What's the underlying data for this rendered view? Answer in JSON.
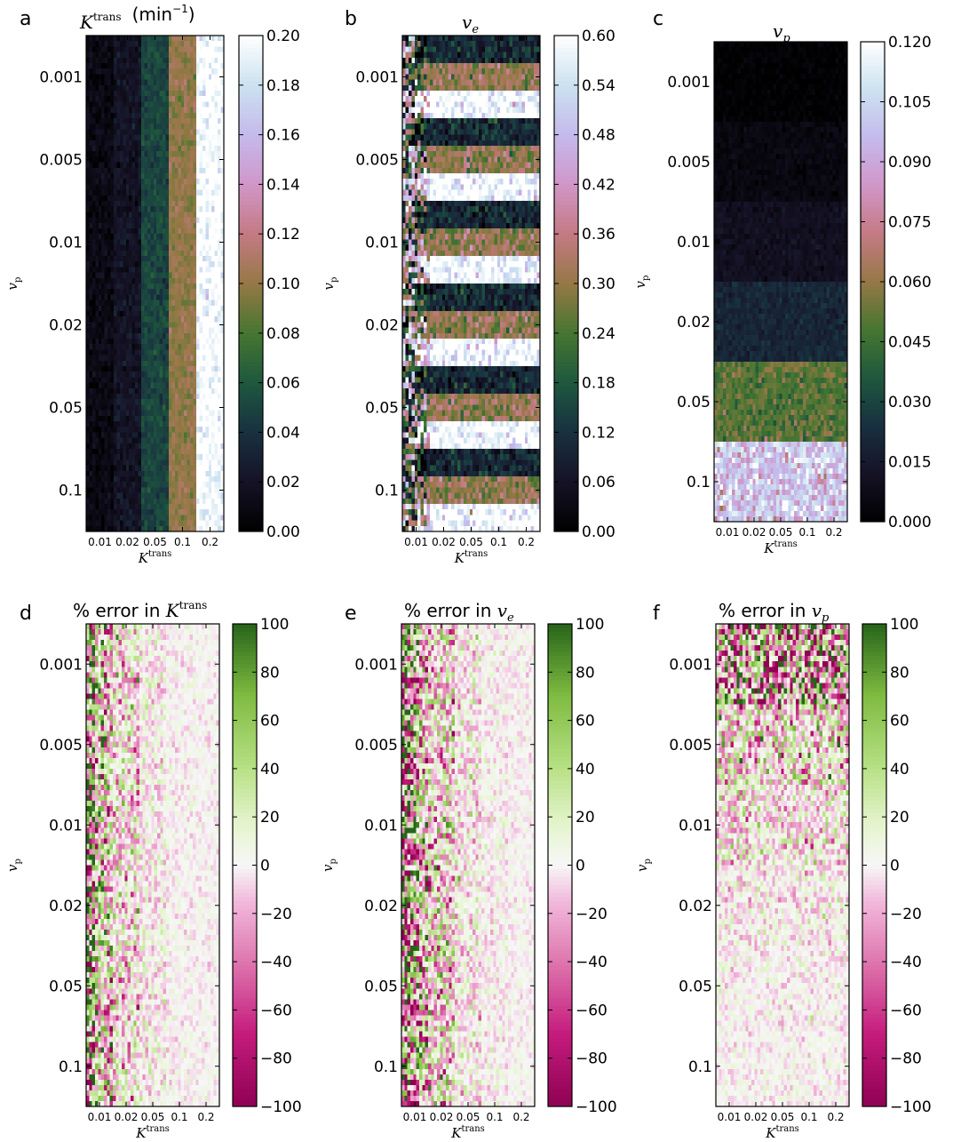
{
  "x_axis": {
    "label_main": "K",
    "label_sup": "trans",
    "tick_labels": [
      "0.01",
      "0.02",
      "0.05",
      "0.1",
      "0.2"
    ]
  },
  "y_axis": {
    "label_main": "v",
    "label_sub": "p",
    "tick_labels": [
      "0.001",
      "0.005",
      "0.01",
      "0.02",
      "0.05",
      "0.1"
    ]
  },
  "panels": [
    {
      "letter": "a",
      "title_math": "K",
      "title_sup": "trans",
      "title_sub": "",
      "title_suffix": "(min",
      "title_suffix_sup": "−1",
      "title_suffix_end": ")",
      "title_prefix": "",
      "colorbar_ticks": [
        "0.20",
        "0.18",
        "0.16",
        "0.14",
        "0.12",
        "0.10",
        "0.08",
        "0.06",
        "0.04",
        "0.02",
        "0.00"
      ],
      "colormap": "cubehelix"
    },
    {
      "letter": "b",
      "title_prefix": "",
      "title_math": "v",
      "title_sup": "",
      "title_sub": "e",
      "title_suffix": "",
      "title_suffix_sup": "",
      "title_suffix_end": "",
      "colorbar_ticks": [
        "0.60",
        "0.54",
        "0.48",
        "0.42",
        "0.36",
        "0.30",
        "0.24",
        "0.18",
        "0.12",
        "0.06",
        "0.00"
      ],
      "colormap": "cubehelix"
    },
    {
      "letter": "c",
      "title_prefix": "",
      "title_math": "v",
      "title_sup": "",
      "title_sub": "p",
      "title_suffix": "",
      "title_suffix_sup": "",
      "title_suffix_end": "",
      "colorbar_ticks": [
        "0.120",
        "0.105",
        "0.090",
        "0.075",
        "0.060",
        "0.045",
        "0.030",
        "0.015",
        "0.000"
      ],
      "colormap": "cubehelix"
    },
    {
      "letter": "d",
      "title_prefix": "% error in",
      "title_math": "K",
      "title_sup": "trans",
      "title_sub": "",
      "title_suffix": "",
      "title_suffix_sup": "",
      "title_suffix_end": "",
      "colorbar_ticks": [
        "100",
        "80",
        "60",
        "40",
        "20",
        "0",
        "−20",
        "−40",
        "−60",
        "−80",
        "−100"
      ],
      "colormap": "PiYG"
    },
    {
      "letter": "e",
      "title_prefix": "% error in",
      "title_math": "v",
      "title_sup": "",
      "title_sub": "e",
      "title_suffix": "",
      "title_suffix_sup": "",
      "title_suffix_end": "",
      "colorbar_ticks": [
        "100",
        "80",
        "60",
        "40",
        "20",
        "0",
        "−20",
        "−40",
        "−60",
        "−80",
        "−100"
      ],
      "colormap": "PiYG"
    },
    {
      "letter": "f",
      "title_prefix": "% error in",
      "title_math": "v",
      "title_sup": "",
      "title_sub": "p",
      "title_suffix": "",
      "title_suffix_sup": "",
      "title_suffix_end": "",
      "colorbar_ticks": [
        "100",
        "80",
        "60",
        "40",
        "20",
        "0",
        "−20",
        "−40",
        "−60",
        "−80",
        "−100"
      ],
      "colormap": "PiYG"
    }
  ],
  "chart_data": [
    {
      "type": "heatmap",
      "panel": "a",
      "quantity": "Ktrans (min^-1)",
      "x_categories": [
        "0.01",
        "0.02",
        "0.05",
        "0.1",
        "0.2"
      ],
      "y_categories": [
        "0.001",
        "0.005",
        "0.01",
        "0.02",
        "0.05",
        "0.1"
      ],
      "column_values": [
        0.01,
        0.02,
        0.05,
        0.1,
        0.2
      ],
      "clim": [
        0.0,
        0.2
      ]
    },
    {
      "type": "heatmap",
      "panel": "b",
      "quantity": "ve",
      "x_categories": [
        "0.01",
        "0.02",
        "0.05",
        "0.1",
        "0.2"
      ],
      "y_categories": [
        "0.001",
        "0.005",
        "0.01",
        "0.02",
        "0.05",
        "0.1"
      ],
      "row_band_values": [
        0.1,
        0.3,
        0.6
      ],
      "clim": [
        0.0,
        0.6
      ]
    },
    {
      "type": "heatmap",
      "panel": "c",
      "quantity": "vp",
      "x_categories": [
        "0.01",
        "0.02",
        "0.05",
        "0.1",
        "0.2"
      ],
      "y_categories": [
        "0.001",
        "0.005",
        "0.01",
        "0.02",
        "0.05",
        "0.1"
      ],
      "row_band_values": [
        0.001,
        0.005,
        0.01,
        0.02,
        0.05,
        0.1
      ],
      "clim": [
        0.0,
        0.12
      ]
    },
    {
      "type": "heatmap",
      "panel": "d",
      "quantity": "% error in Ktrans",
      "x_categories": [
        "0.01",
        "0.02",
        "0.05",
        "0.1",
        "0.2"
      ],
      "y_categories": [
        "0.001",
        "0.005",
        "0.01",
        "0.02",
        "0.05",
        "0.1"
      ],
      "column_noise_percent": [
        60,
        35,
        18,
        10,
        8
      ],
      "clim": [
        -100,
        100
      ]
    },
    {
      "type": "heatmap",
      "panel": "e",
      "quantity": "% error in ve",
      "x_categories": [
        "0.01",
        "0.02",
        "0.05",
        "0.1",
        "0.2"
      ],
      "y_categories": [
        "0.001",
        "0.005",
        "0.01",
        "0.02",
        "0.05",
        "0.1"
      ],
      "column_noise_percent": [
        70,
        45,
        22,
        12,
        8
      ],
      "clim": [
        -100,
        100
      ]
    },
    {
      "type": "heatmap",
      "panel": "f",
      "quantity": "% error in vp",
      "x_categories": [
        "0.01",
        "0.02",
        "0.05",
        "0.1",
        "0.2"
      ],
      "y_categories": [
        "0.001",
        "0.005",
        "0.01",
        "0.02",
        "0.05",
        "0.1"
      ],
      "row_band_noise_percent": [
        95,
        45,
        30,
        18,
        12,
        10
      ],
      "clim": [
        -100,
        100
      ]
    }
  ]
}
